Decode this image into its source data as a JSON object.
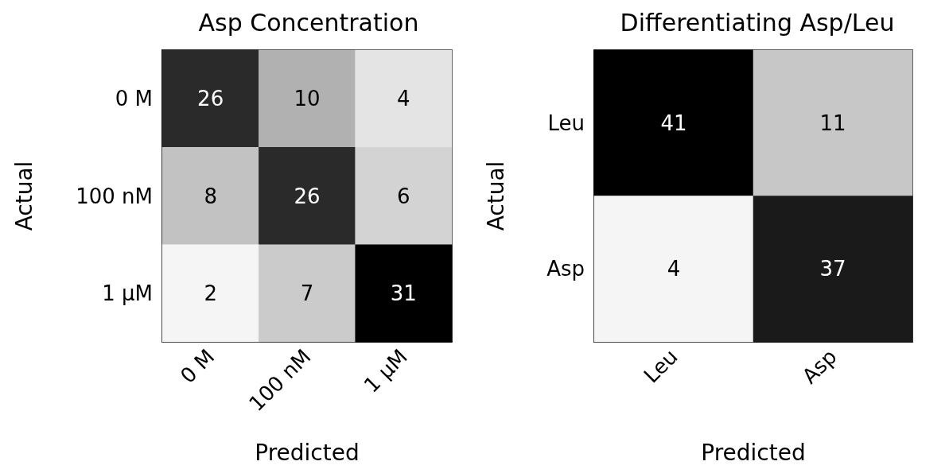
{
  "chart_data": [
    {
      "type": "heatmap",
      "title": "Asp Concentration",
      "xlabel": "Predicted",
      "ylabel": "Actual",
      "categories": [
        "0 M",
        "100 nM",
        "1 μM"
      ],
      "y_categories": [
        "0 M",
        "100 nM",
        "1 μM"
      ],
      "cells": [
        [
          26,
          10,
          4
        ],
        [
          8,
          26,
          6
        ],
        [
          2,
          7,
          31
        ]
      ],
      "data_labels": true
    },
    {
      "type": "heatmap",
      "title": "Differentiating Asp/Leu",
      "xlabel": "Predicted",
      "ylabel": "Actual",
      "categories": [
        "Leu",
        "Asp"
      ],
      "y_categories": [
        "Leu",
        "Asp"
      ],
      "cells": [
        [
          41,
          11
        ],
        [
          4,
          37
        ]
      ],
      "data_labels": true
    }
  ]
}
